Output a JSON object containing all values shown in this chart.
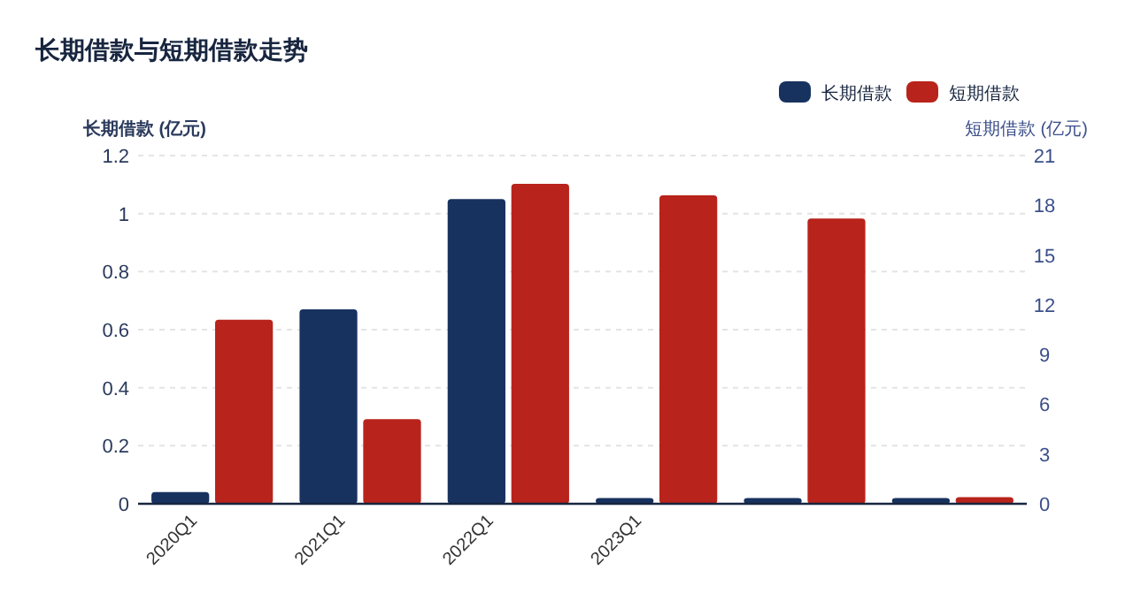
{
  "chart_data": {
    "type": "bar",
    "title": "长期借款与短期借款走势",
    "categories": [
      "2020Q1",
      "2021Q1",
      "2022Q1",
      "2023Q1",
      null,
      null
    ],
    "series": [
      {
        "name": "长期借款",
        "color": "#17325f",
        "values": [
          0.04,
          0.67,
          1.05,
          0.02,
          0.02,
          0.02
        ]
      },
      {
        "name": "短期借款",
        "color": "#b8231b",
        "axis": "y2",
        "values": [
          11.1,
          5.1,
          19.3,
          18.6,
          17.2,
          0.4
        ]
      }
    ],
    "ylabel": "长期借款 (亿元)",
    "y2label": "短期借款 (亿元)",
    "ylim": [
      0,
      1.2
    ],
    "yticks": [
      0,
      0.2,
      0.4,
      0.6,
      0.8,
      1,
      1.2
    ],
    "y2lim": [
      0,
      21
    ],
    "y2ticks": [
      0,
      3,
      6,
      9,
      12,
      15,
      18,
      21
    ],
    "grid": "y",
    "legend": "top right"
  }
}
